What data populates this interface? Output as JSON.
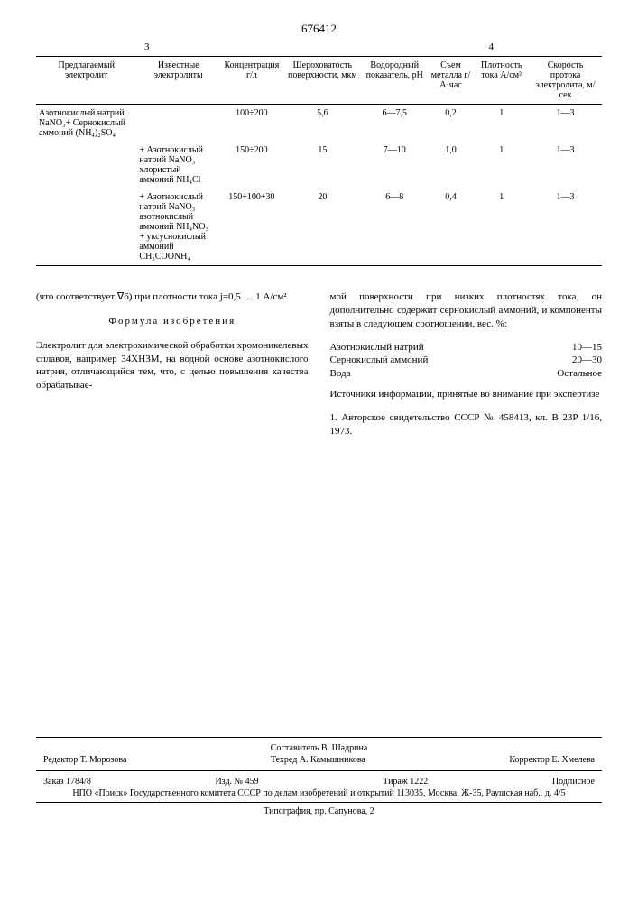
{
  "patent_number": "676412",
  "page_left": "3",
  "page_right": "4",
  "table": {
    "headers": [
      "Предлагаемый электролит",
      "Известные электролиты",
      "Концентрация г/л",
      "Шероховатость поверхности, мкм",
      "Водородный показатель, pH",
      "Съем металла г/А·час",
      "Плотность тока А/см²",
      "Скорость протока электролита, м/сек"
    ],
    "rows": [
      {
        "c1": "Азотнокислый натрий NaNO₃+ Сернокислый аммоний (NH₄)₂SO₄",
        "c2": "",
        "c3": "100÷200",
        "c4": "5,6",
        "c5": "6—7,5",
        "c6": "0,2",
        "c7": "1",
        "c8": "1—3"
      },
      {
        "c1": "",
        "c2": "+ Азотнокислый натрий NaNO₃\nхлористый аммоний NH₄Cl",
        "c3": "150÷200",
        "c4": "15",
        "c5": "7—10",
        "c6": "1,0",
        "c7": "1",
        "c8": "1—3"
      },
      {
        "c1": "",
        "c2": "+ Азотнокислый натрий NaNO₃\nазотнокислый аммоний NH₄NO₃\n+ уксуснокислый аммоний CH₃COONH₄",
        "c3": "150+100+30",
        "c4": "20",
        "c5": "6—8",
        "c6": "0,4",
        "c7": "1",
        "c8": "1—3"
      }
    ]
  },
  "left_col": {
    "p1": "(что соответствует ∇6) при плотности тока j=0,5 … 1 А/см².",
    "formula_title": "Формула изобретения",
    "p2": "Электролит для электрохимической обработки хромоникелевых сплавов, например 34ХНЗМ, на водной основе азотнокислого натрия, отличающийся тем, что, с целью повышения качества обрабатывае-"
  },
  "right_col": {
    "p1": "мой поверхности при низких плотностях тока, он дополнительно содержит сернокислый аммоний, и компоненты взяты в следующем соотношении, вес. %:",
    "ratios": [
      {
        "name": "Азотнокислый натрий",
        "val": "10—15"
      },
      {
        "name": "Сернокислый аммоний",
        "val": "20—30"
      },
      {
        "name": "Вода",
        "val": "Остальное"
      }
    ],
    "sources_title": "Источники информации, принятые во внимание при экспертизе",
    "source1": "1. Авторское свидетельство СССР № 458413, кл. В 23P 1/16, 1973."
  },
  "footer": {
    "compiler": "Составитель В. Шадрина",
    "editor": "Редактор Т. Морозова",
    "tech": "Техред А. Камышникова",
    "corrector": "Корректор Е. Хмелева",
    "order": "Заказ 1784/8",
    "izd": "Изд. № 459",
    "tirage": "Тираж 1222",
    "subscr": "Подписное",
    "org": "НПО «Поиск» Государственного комитета СССР по делам изобретений и открытий 113035, Москва, Ж-35, Раушская наб., д. 4/5",
    "typo": "Типография, пр. Сапунова, 2"
  }
}
